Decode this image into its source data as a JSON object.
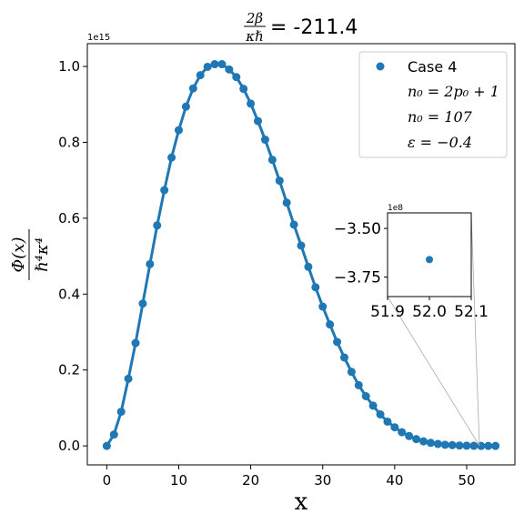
{
  "chart_data": {
    "type": "scatter",
    "title_fraction_num": "2β",
    "title_fraction_den": "κℏ",
    "title_value": "= -211.4",
    "xlabel": "x",
    "ylabel_num": "Φ(x)",
    "ylabel_den": "ℏ⁴κ⁴",
    "y_multiplier": "1e15",
    "xlim": [
      -2.7,
      56.7
    ],
    "ylim": [
      -0.05,
      1.06
    ],
    "x_ticks": [
      "0",
      "10",
      "20",
      "30",
      "40",
      "50"
    ],
    "y_ticks": [
      "0.0",
      "0.2",
      "0.4",
      "0.6",
      "0.8",
      "1.0"
    ],
    "series": [
      {
        "name": "Case 4",
        "color": "#1f77b4",
        "x": [
          0,
          1,
          2,
          3,
          4,
          5,
          6,
          7,
          8,
          9,
          10,
          11,
          12,
          13,
          14,
          15,
          16,
          17,
          18,
          19,
          20,
          21,
          22,
          23,
          24,
          25,
          26,
          27,
          28,
          29,
          30,
          31,
          32,
          33,
          34,
          35,
          36,
          37,
          38,
          39,
          40,
          41,
          42,
          43,
          44,
          45,
          46,
          47,
          48,
          49,
          50,
          51,
          52,
          53,
          54
        ],
        "y": [
          0.0,
          0.03,
          0.09,
          0.177,
          0.271,
          0.375,
          0.479,
          0.581,
          0.674,
          0.76,
          0.832,
          0.894,
          0.942,
          0.977,
          0.999,
          1.006,
          1.006,
          0.992,
          0.972,
          0.941,
          0.902,
          0.856,
          0.807,
          0.754,
          0.699,
          0.641,
          0.583,
          0.528,
          0.472,
          0.418,
          0.367,
          0.32,
          0.274,
          0.233,
          0.195,
          0.16,
          0.131,
          0.106,
          0.083,
          0.064,
          0.049,
          0.036,
          0.026,
          0.018,
          0.012,
          0.008,
          0.005,
          0.003,
          0.002,
          0.001,
          0.0005,
          0.0002,
          0.0,
          0.0,
          0.0
        ]
      }
    ],
    "legend": {
      "placement": "top-right",
      "entries": [
        "Case 4",
        "n₀ = 2p₀ + 1",
        "n₀ = 107",
        "ε = −0.4"
      ]
    },
    "inset": {
      "xlim": [
        51.9,
        52.1
      ],
      "ylim": [
        -3.85,
        -3.42
      ],
      "y_multiplier": "1e8",
      "x_ticks": [
        "51.9",
        "52.0",
        "52.1"
      ],
      "y_ticks": [
        "−3.50",
        "−3.75"
      ],
      "point": {
        "x": 52.0,
        "y": -3.66
      }
    }
  }
}
